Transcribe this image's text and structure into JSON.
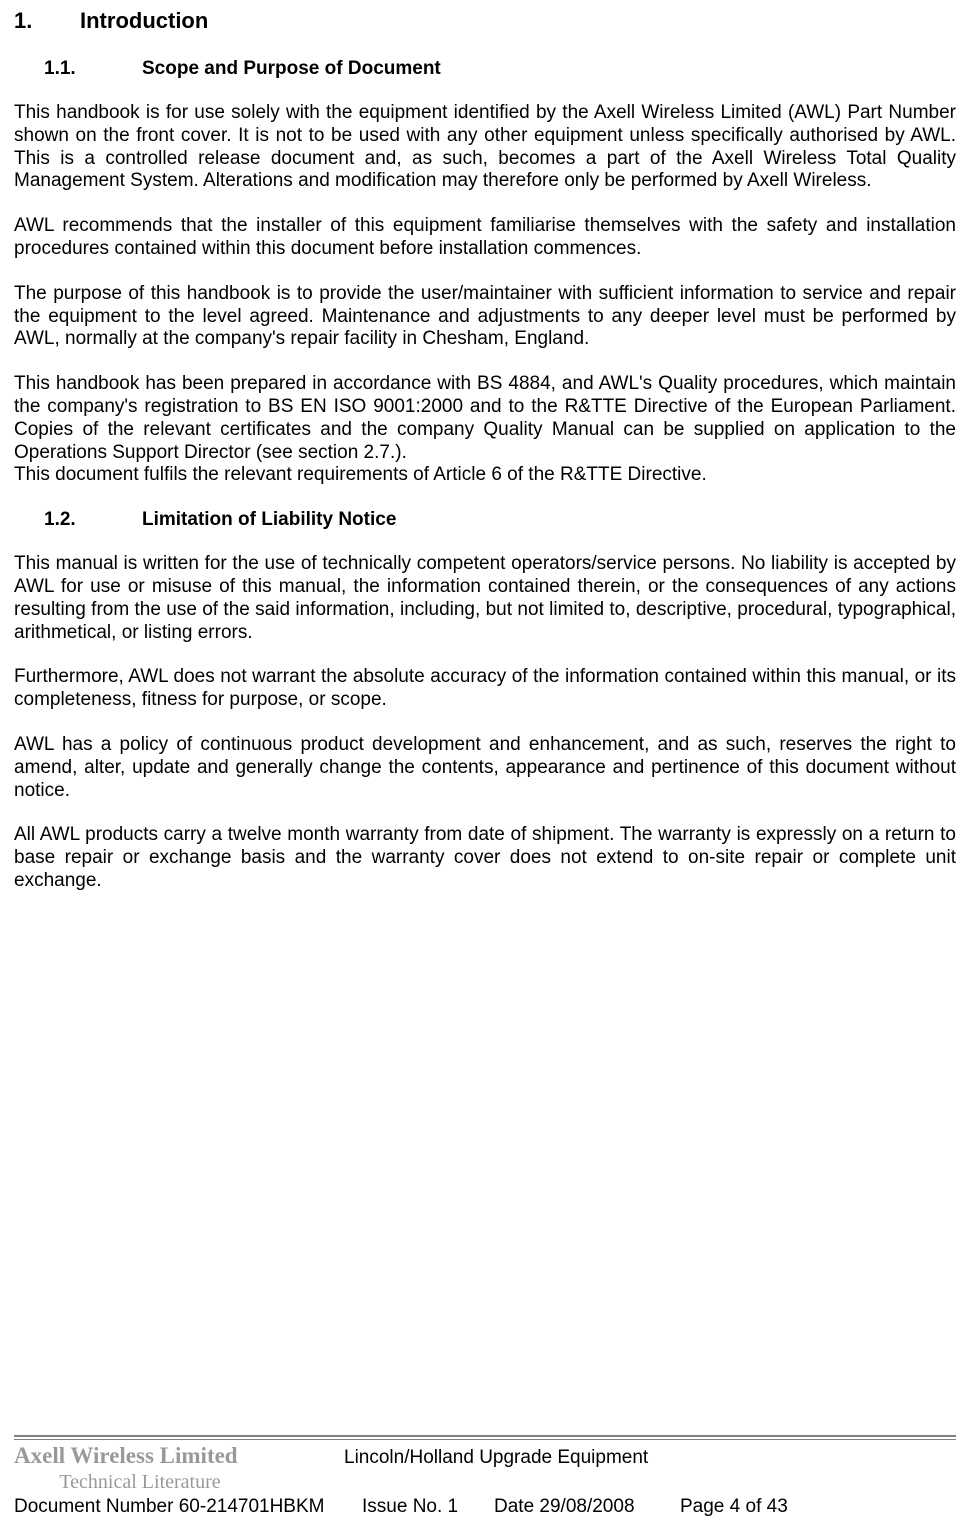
{
  "h1": {
    "num": "1.",
    "title": "Introduction"
  },
  "h2a": {
    "num": "1.1.",
    "title": "Scope and Purpose of Document"
  },
  "p1": "This handbook is for use solely with the equipment identified by the Axell Wireless Limited (AWL) Part Number shown on the front cover. It is not to be used with any other equipment unless specifically authorised by AWL. This is a controlled release document and, as such, becomes a part of the Axell Wireless Total Quality Management System. Alterations and modification may therefore only be performed by Axell Wireless.",
  "p2": "AWL recommends that the installer of this equipment familiarise themselves with the safety and installation procedures contained within this document before installation commences.",
  "p3": "The purpose of this handbook is to provide the user/maintainer with sufficient information to service and repair the equipment to the level agreed. Maintenance and adjustments to any deeper level must be performed by AWL, normally at the company's repair facility in Chesham, England.",
  "p4": "This handbook has been prepared in accordance with BS 4884, and AWL's Quality procedures, which maintain the company's registration to BS EN ISO 9001:2000 and to the R&TTE Directive of the European Parliament. Copies of the relevant certificates and the company Quality Manual can be supplied on application to the Operations Support Director (see section 2.7.).",
  "p4b": "This document fulfils the relevant requirements of Article 6 of the R&TTE Directive.",
  "h2b": {
    "num": "1.2.",
    "title": "Limitation of Liability Notice"
  },
  "p5": "This manual is written for the use of technically competent operators/service persons. No liability is accepted by AWL for use or misuse of this manual, the information contained therein, or the consequences of any actions resulting from the use of the said information, including, but not limited to, descriptive, procedural, typographical, arithmetical, or listing errors.",
  "p6": "Furthermore, AWL does not warrant the absolute accuracy of the information contained within this manual, or its completeness, fitness for purpose, or scope.",
  "p7": "AWL has a policy of continuous product development and enhancement, and as such, reserves the right to amend, alter, update and generally change the contents, appearance and pertinence of this document without notice.",
  "p8": "All AWL products carry a twelve month warranty from date of shipment. The warranty is expressly on a return to base repair or exchange basis and the warranty cover does not extend to on-site repair or complete unit exchange.",
  "footer": {
    "company": "Axell Wireless Limited",
    "doc_title": "Lincoln/Holland Upgrade Equipment",
    "tech": "Technical Literature",
    "docnum": "Document Number 60-214701HBKM",
    "issue": "Issue No. 1",
    "date": "Date 29/08/2008",
    "page": "Page 4 of 43"
  }
}
